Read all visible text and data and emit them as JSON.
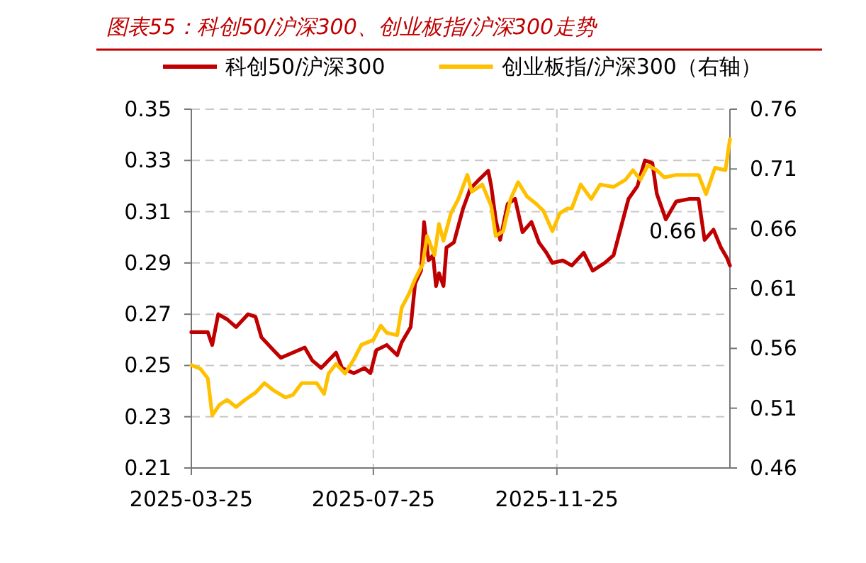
{
  "chart_data": {
    "type": "line",
    "title": "图表55：科创50/沪深300、创业板指/沪深300走势",
    "legend": "top",
    "grid": true,
    "line_style": "solid",
    "marker": "none",
    "xlim": [
      "2025-03-25",
      "2026-03-21"
    ],
    "xticks": [
      "2025-03-25",
      "2025-07-25",
      "2025-11-25"
    ],
    "ylim": [
      0.21,
      0.35
    ],
    "yticks": [
      0.21,
      0.23,
      0.25,
      0.27,
      0.29,
      0.31,
      0.33,
      0.35
    ],
    "y2lim": [
      0.46,
      0.76
    ],
    "y2ticks": [
      0.46,
      0.51,
      0.56,
      0.61,
      0.66,
      0.71,
      0.76
    ],
    "annotations": [
      "0.66"
    ],
    "series": [
      {
        "name": "科创50/沪深300",
        "color": "#c00000",
        "x": [
          "2025-03-25",
          "2025-04-05",
          "2025-04-08",
          "2025-04-12",
          "2025-04-18",
          "2025-04-24",
          "2025-05-02",
          "2025-05-07",
          "2025-05-11",
          "2025-05-19",
          "2025-05-24",
          "2025-06-01",
          "2025-06-09",
          "2025-06-14",
          "2025-06-20",
          "2025-06-30",
          "2025-07-04",
          "2025-07-12",
          "2025-07-19",
          "2025-07-23",
          "2025-07-27",
          "2025-08-03",
          "2025-08-10",
          "2025-08-13",
          "2025-08-19",
          "2025-08-22",
          "2025-08-26",
          "2025-08-28",
          "2025-08-31",
          "2025-09-03",
          "2025-09-05",
          "2025-09-07",
          "2025-09-10",
          "2025-09-12",
          "2025-09-17",
          "2025-09-23",
          "2025-09-28",
          "2025-10-03",
          "2025-10-10",
          "2025-10-12",
          "2025-10-15",
          "2025-10-18",
          "2025-10-23",
          "2025-10-28",
          "2025-11-02",
          "2025-11-08",
          "2025-11-13",
          "2025-11-18",
          "2025-11-22",
          "2025-11-29",
          "2025-12-05",
          "2025-12-13",
          "2025-12-19",
          "2025-12-27",
          "2026-01-02",
          "2026-01-07",
          "2026-01-12",
          "2026-01-18",
          "2026-01-23",
          "2026-01-28",
          "2026-01-31",
          "2026-02-06",
          "2026-02-13",
          "2026-02-22",
          "2026-02-28",
          "2026-03-04",
          "2026-03-10",
          "2026-03-15",
          "2026-03-19",
          "2026-03-21"
        ],
        "values": [
          0.263,
          0.263,
          0.258,
          0.27,
          0.268,
          0.265,
          0.27,
          0.269,
          0.261,
          0.256,
          0.253,
          0.255,
          0.257,
          0.252,
          0.249,
          0.255,
          0.249,
          0.247,
          0.249,
          0.247,
          0.256,
          0.258,
          0.254,
          0.259,
          0.265,
          0.282,
          0.287,
          0.306,
          0.291,
          0.293,
          0.281,
          0.286,
          0.281,
          0.296,
          0.298,
          0.311,
          0.319,
          0.322,
          0.326,
          0.32,
          0.307,
          0.299,
          0.313,
          0.315,
          0.302,
          0.306,
          0.298,
          0.294,
          0.29,
          0.291,
          0.289,
          0.294,
          0.287,
          0.29,
          0.293,
          0.304,
          0.315,
          0.32,
          0.33,
          0.329,
          0.317,
          0.307,
          0.314,
          0.315,
          0.315,
          0.299,
          0.303,
          0.296,
          0.292,
          0.289
        ]
      },
      {
        "name": "创业板指/沪深300（右轴）",
        "color": "#ffc000",
        "axis": "y2",
        "x": [
          "2025-03-25",
          "2025-03-31",
          "2025-04-05",
          "2025-04-08",
          "2025-04-13",
          "2025-04-18",
          "2025-04-24",
          "2025-04-30",
          "2025-05-07",
          "2025-05-13",
          "2025-05-19",
          "2025-05-27",
          "2025-06-01",
          "2025-06-07",
          "2025-06-17",
          "2025-06-22",
          "2025-06-25",
          "2025-06-30",
          "2025-07-06",
          "2025-07-12",
          "2025-07-17",
          "2025-07-25",
          "2025-07-30",
          "2025-08-03",
          "2025-08-10",
          "2025-08-13",
          "2025-08-18",
          "2025-08-22",
          "2025-08-27",
          "2025-08-30",
          "2025-09-04",
          "2025-09-07",
          "2025-09-10",
          "2025-09-15",
          "2025-09-20",
          "2025-09-26",
          "2025-09-29",
          "2025-10-06",
          "2025-10-12",
          "2025-10-15",
          "2025-10-20",
          "2025-10-25",
          "2025-10-30",
          "2025-11-05",
          "2025-11-11",
          "2025-11-16",
          "2025-11-22",
          "2025-11-27",
          "2025-12-02",
          "2025-12-05",
          "2025-12-11",
          "2025-12-18",
          "2025-12-24",
          "2026-01-02",
          "2026-01-10",
          "2026-01-15",
          "2026-01-20",
          "2026-01-25",
          "2026-01-31",
          "2026-02-05",
          "2026-02-13",
          "2026-02-22",
          "2026-02-28",
          "2026-03-05",
          "2026-03-11",
          "2026-03-18",
          "2026-03-21"
        ],
        "values": [
          0.546,
          0.543,
          0.535,
          0.504,
          0.513,
          0.517,
          0.511,
          0.517,
          0.523,
          0.531,
          0.525,
          0.519,
          0.521,
          0.531,
          0.531,
          0.522,
          0.539,
          0.547,
          0.539,
          0.551,
          0.563,
          0.567,
          0.579,
          0.573,
          0.571,
          0.594,
          0.606,
          0.618,
          0.63,
          0.654,
          0.638,
          0.664,
          0.65,
          0.673,
          0.685,
          0.705,
          0.691,
          0.697,
          0.679,
          0.654,
          0.658,
          0.685,
          0.699,
          0.687,
          0.681,
          0.675,
          0.658,
          0.673,
          0.677,
          0.677,
          0.697,
          0.685,
          0.697,
          0.695,
          0.701,
          0.709,
          0.701,
          0.713,
          0.709,
          0.703,
          0.705,
          0.705,
          0.705,
          0.689,
          0.711,
          0.709,
          0.735
        ]
      }
    ]
  }
}
